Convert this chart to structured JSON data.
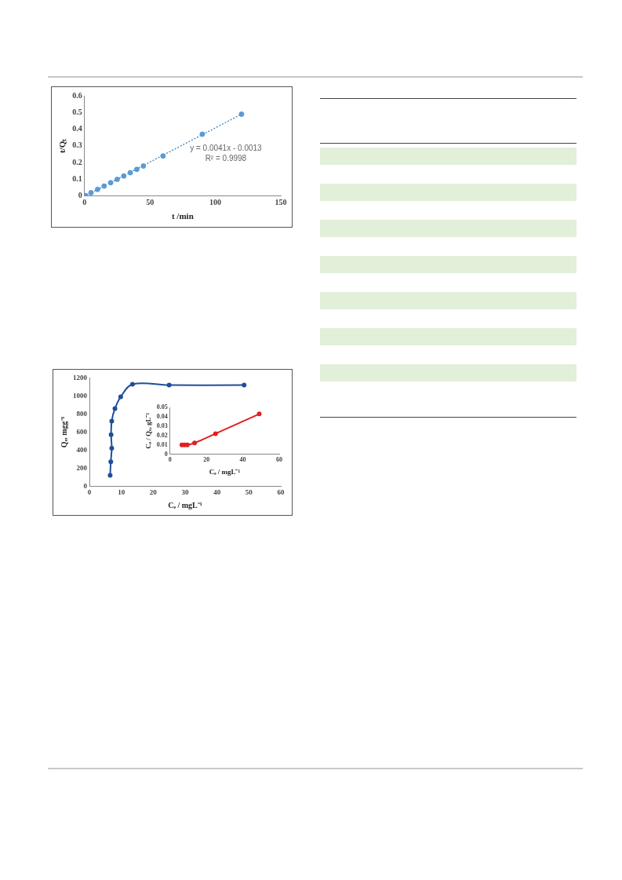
{
  "chart_data": [
    {
      "type": "scatter",
      "xlabel": "t /min",
      "ylabel": "t/Qₜ",
      "xlim": [
        0,
        150
      ],
      "xticks": [
        0,
        50,
        100,
        150
      ],
      "ylim": [
        0,
        0.6
      ],
      "yticks": [
        0,
        0.1,
        0.2,
        0.3,
        0.4,
        0.5,
        0.6
      ],
      "grid": false,
      "legend": false,
      "marker": "circle",
      "annotations": [
        "y = 0.0041x - 0.0013",
        "R² = 0.9998"
      ],
      "series": [
        {
          "color": "#5b9bd5",
          "x": [
            1,
            5,
            10,
            15,
            20,
            25,
            30,
            35,
            40,
            45,
            60,
            90,
            120
          ],
          "values": [
            0.003,
            0.02,
            0.04,
            0.06,
            0.08,
            0.1,
            0.12,
            0.14,
            0.16,
            0.18,
            0.24,
            0.37,
            0.49
          ]
        },
        {
          "type": "line",
          "color": "#2e75b6",
          "line_style": "dotted",
          "marker": "none",
          "x": [
            1,
            120
          ],
          "values": [
            0.003,
            0.49
          ]
        }
      ]
    },
    {
      "type": "line",
      "xlabel": "Cₑ / mgL⁻¹",
      "ylabel": "Qₑ, mgg⁻¹",
      "xlim": [
        0,
        60
      ],
      "xticks": [
        0,
        10,
        20,
        30,
        40,
        50,
        60
      ],
      "ylim": [
        0,
        1200
      ],
      "yticks": [
        0,
        200,
        400,
        600,
        800,
        1000,
        1200
      ],
      "grid": false,
      "legend": false,
      "marker": "circle",
      "series": [
        {
          "color": "#1f4e99",
          "x": [
            6.5,
            6.7,
            7,
            6.8,
            7,
            8,
            9.8,
            13.5,
            25,
            48.5
          ],
          "values": [
            120,
            270,
            420,
            570,
            720,
            860,
            990,
            1130,
            1120,
            1120
          ]
        }
      ]
    },
    {
      "type": "line",
      "xlabel": "Cₑ / mgL⁻¹",
      "ylabel": "Cₑ / Qₑ, gL⁻¹",
      "xlim": [
        0,
        60
      ],
      "xticks": [
        0,
        20,
        40,
        60
      ],
      "ylim": [
        0,
        0.05
      ],
      "yticks": [
        0,
        0.01,
        0.02,
        0.03,
        0.04,
        0.05
      ],
      "grid": false,
      "legend": false,
      "marker": "circle",
      "series": [
        {
          "color": "#e02020",
          "x": [
            6.5,
            8,
            9.5,
            13.5,
            25,
            49
          ],
          "values": [
            0.01,
            0.01,
            0.01,
            0.012,
            0.022,
            0.043
          ]
        }
      ]
    }
  ]
}
